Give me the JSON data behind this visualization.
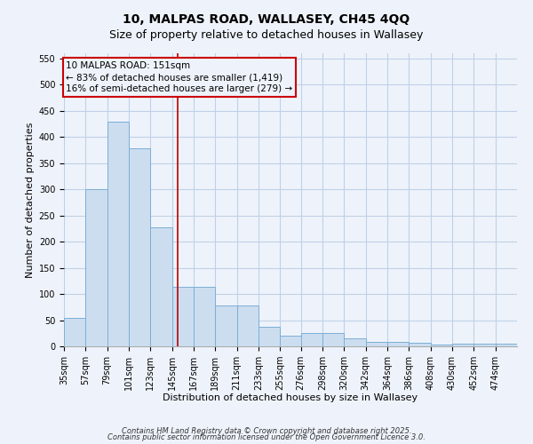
{
  "title_line1": "10, MALPAS ROAD, WALLASEY, CH45 4QQ",
  "title_line2": "Size of property relative to detached houses in Wallasey",
  "xlabel": "Distribution of detached houses by size in Wallasey",
  "ylabel": "Number of detached properties",
  "categories": [
    "35sqm",
    "57sqm",
    "79sqm",
    "101sqm",
    "123sqm",
    "145sqm",
    "167sqm",
    "189sqm",
    "211sqm",
    "233sqm",
    "255sqm",
    "276sqm",
    "298sqm",
    "320sqm",
    "342sqm",
    "364sqm",
    "386sqm",
    "408sqm",
    "430sqm",
    "452sqm",
    "474sqm"
  ],
  "bin_edges": [
    35,
    57,
    79,
    101,
    123,
    145,
    167,
    189,
    211,
    233,
    255,
    276,
    298,
    320,
    342,
    364,
    386,
    408,
    430,
    452,
    474,
    496
  ],
  "values": [
    55,
    300,
    430,
    378,
    228,
    113,
    113,
    78,
    78,
    38,
    20,
    25,
    25,
    15,
    8,
    8,
    7,
    4,
    5,
    5,
    5
  ],
  "bar_facecolor": "#ccddf0",
  "bar_edgecolor": "#7bafd4",
  "grid_color": "#c0d0e8",
  "bg_color": "#eef3fb",
  "vline_x": 151,
  "vline_color": "#bb0000",
  "annotation_text": "10 MALPAS ROAD: 151sqm\n← 83% of detached houses are smaller (1,419)\n16% of semi-detached houses are larger (279) →",
  "annotation_box_color": "#cc0000",
  "annotation_text_color": "#000000",
  "ylim": [
    0,
    560
  ],
  "yticks": [
    0,
    50,
    100,
    150,
    200,
    250,
    300,
    350,
    400,
    450,
    500,
    550
  ],
  "footer1": "Contains HM Land Registry data © Crown copyright and database right 2025.",
  "footer2": "Contains public sector information licensed under the Open Government Licence 3.0.",
  "title_fontsize": 10,
  "subtitle_fontsize": 9,
  "axis_label_fontsize": 8,
  "tick_fontsize": 7,
  "annotation_fontsize": 7.5,
  "footer_fontsize": 6
}
